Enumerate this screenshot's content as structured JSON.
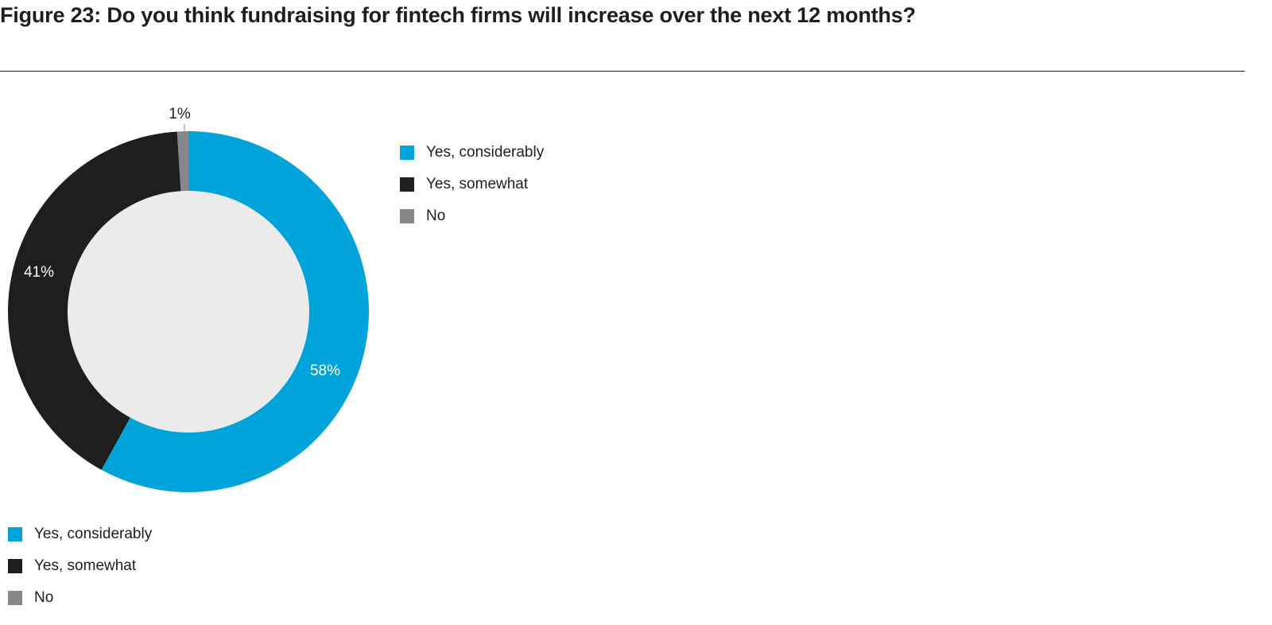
{
  "chart_data": {
    "type": "pie",
    "title": "Figure 23: Do you think fundraising for fintech firms will increase over the next 12 months?",
    "donut": true,
    "start": "top, clockwise",
    "categories": [
      "Yes, considerably",
      "Yes, somewhat",
      "No"
    ],
    "values": [
      58,
      41,
      1
    ],
    "labels": [
      "58%",
      "41%",
      "1%"
    ],
    "colors": [
      "#00a3da",
      "#1e1e1e",
      "#878787"
    ],
    "center_color": "#ebebeb",
    "legend_placement": "right and bottom"
  }
}
